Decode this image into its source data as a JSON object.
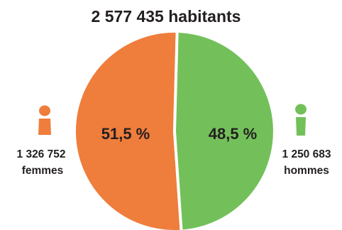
{
  "chart_data": {
    "type": "pie",
    "title": "2 577 435 habitants",
    "colors": {
      "femmes": "#ef7d3c",
      "hommes": "#73c05a",
      "text": "#231f20",
      "separator": "#ffffff"
    },
    "slices": [
      {
        "key": "femmes",
        "percent": 51.5,
        "percent_label": "51,5 %",
        "count_label": "1 326 752",
        "label": "femmes",
        "icon": "woman-icon"
      },
      {
        "key": "hommes",
        "percent": 48.5,
        "percent_label": "48,5 %",
        "count_label": "1 250 683",
        "label": "hommes",
        "icon": "man-icon"
      }
    ]
  }
}
